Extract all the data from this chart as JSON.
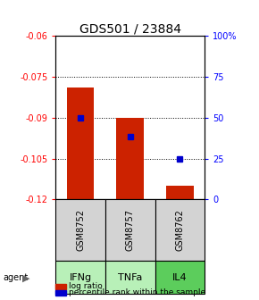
{
  "title": "GDS501 / 23884",
  "samples": [
    "GSM8752",
    "GSM8757",
    "GSM8762"
  ],
  "agents": [
    "IFNg",
    "TNFa",
    "IL4"
  ],
  "bar_tops": [
    -0.079,
    -0.09,
    -0.115
  ],
  "bar_bottoms": [
    -0.12,
    -0.12,
    -0.12
  ],
  "bar_color": "#cc2200",
  "blue_values": [
    -0.09,
    -0.097,
    -0.105
  ],
  "blue_color": "#0000cc",
  "ylim_left": [
    -0.12,
    -0.06
  ],
  "ylim_right": [
    0,
    100
  ],
  "yticks_left": [
    -0.12,
    -0.105,
    -0.09,
    -0.075,
    -0.06
  ],
  "ytick_labels_left": [
    "-0.12",
    "-0.105",
    "-0.09",
    "-0.075",
    "-0.06"
  ],
  "yticks_right": [
    0,
    25,
    50,
    75,
    100
  ],
  "ytick_labels_right": [
    "0",
    "25",
    "50",
    "75",
    "100%"
  ],
  "grid_values": [
    -0.075,
    -0.09,
    -0.105
  ],
  "sample_box_color": "#d3d3d3",
  "agent_box_colors": [
    "#b8f0b8",
    "#b8f0b8",
    "#5ccd5c"
  ],
  "title_fontsize": 10,
  "bar_width": 0.55,
  "legend_red_label": "log ratio",
  "legend_blue_label": "percentile rank within the sample"
}
